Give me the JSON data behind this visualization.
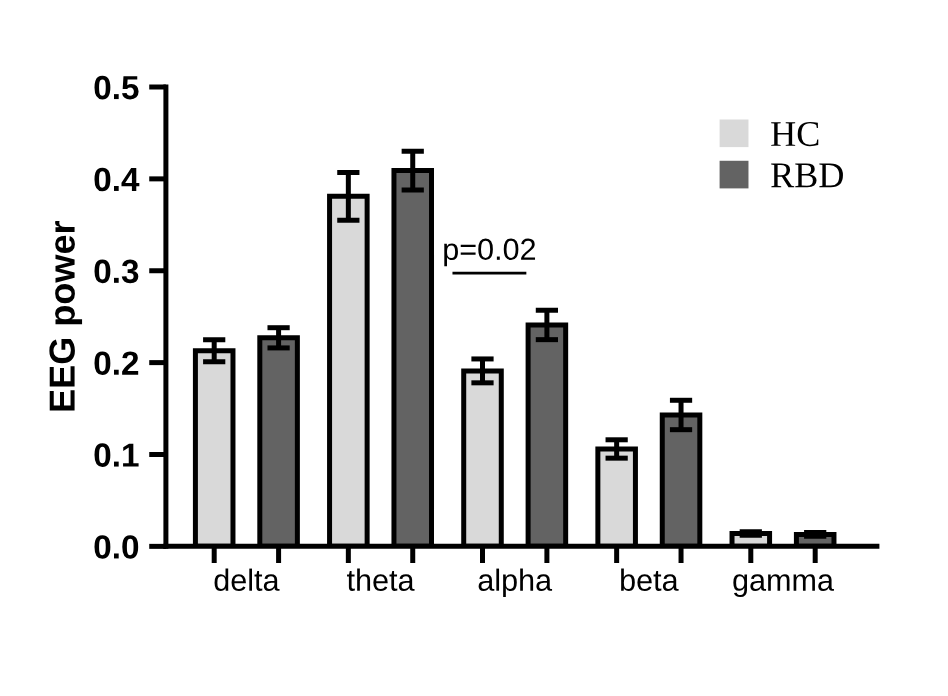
{
  "chart_data": {
    "type": "bar",
    "ylabel": "EEG power",
    "categories": [
      "delta",
      "theta",
      "alpha",
      "beta",
      "gamma"
    ],
    "series": [
      {
        "name": "HC",
        "color": "#d9d9d9",
        "values": [
          0.213,
          0.381,
          0.191,
          0.106,
          0.014
        ],
        "errors": [
          0.012,
          0.026,
          0.013,
          0.01,
          0.002
        ]
      },
      {
        "name": "RBD",
        "color": "#636363",
        "values": [
          0.227,
          0.409,
          0.241,
          0.143,
          0.013
        ],
        "errors": [
          0.011,
          0.021,
          0.016,
          0.016,
          0.002
        ]
      }
    ],
    "ylim": [
      0,
      0.5
    ],
    "yticks": [
      {
        "value": 0,
        "label": "0.0"
      },
      0.1,
      0.2,
      0.3,
      0.4,
      0.5
    ],
    "annotations": [
      "p=0.02"
    ],
    "grid": false,
    "legend": "top right"
  }
}
